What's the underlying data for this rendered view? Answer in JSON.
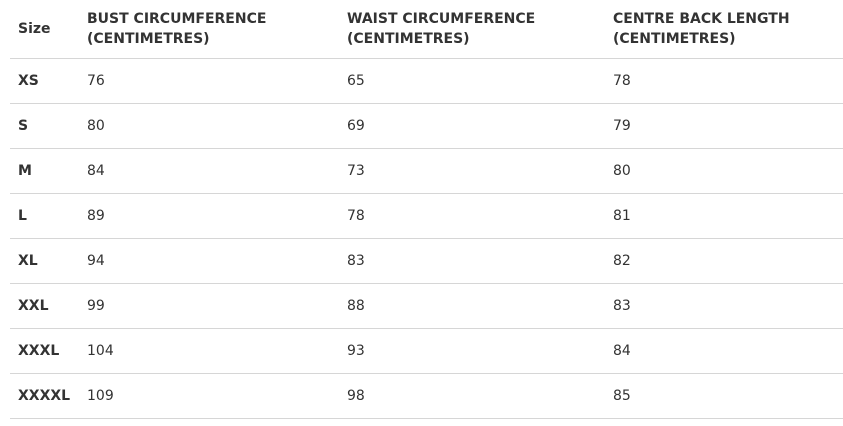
{
  "table": {
    "header": [
      "Size",
      "BUST CIRCUMFERENCE (CENTIMETRES)",
      "WAIST CIRCUMFERENCE (CENTIMETRES)",
      "CENTRE BACK LENGTH (CENTIMETRES)"
    ],
    "rows": [
      [
        "XS",
        76,
        65,
        78
      ],
      [
        "S",
        80,
        69,
        79
      ],
      [
        "M",
        84,
        73,
        80
      ],
      [
        "L",
        89,
        78,
        81
      ],
      [
        "XL",
        94,
        83,
        82
      ],
      [
        "XXL",
        99,
        88,
        83
      ],
      [
        "XXXL",
        104,
        93,
        84
      ],
      [
        "XXXXL",
        109,
        98,
        85
      ]
    ]
  }
}
